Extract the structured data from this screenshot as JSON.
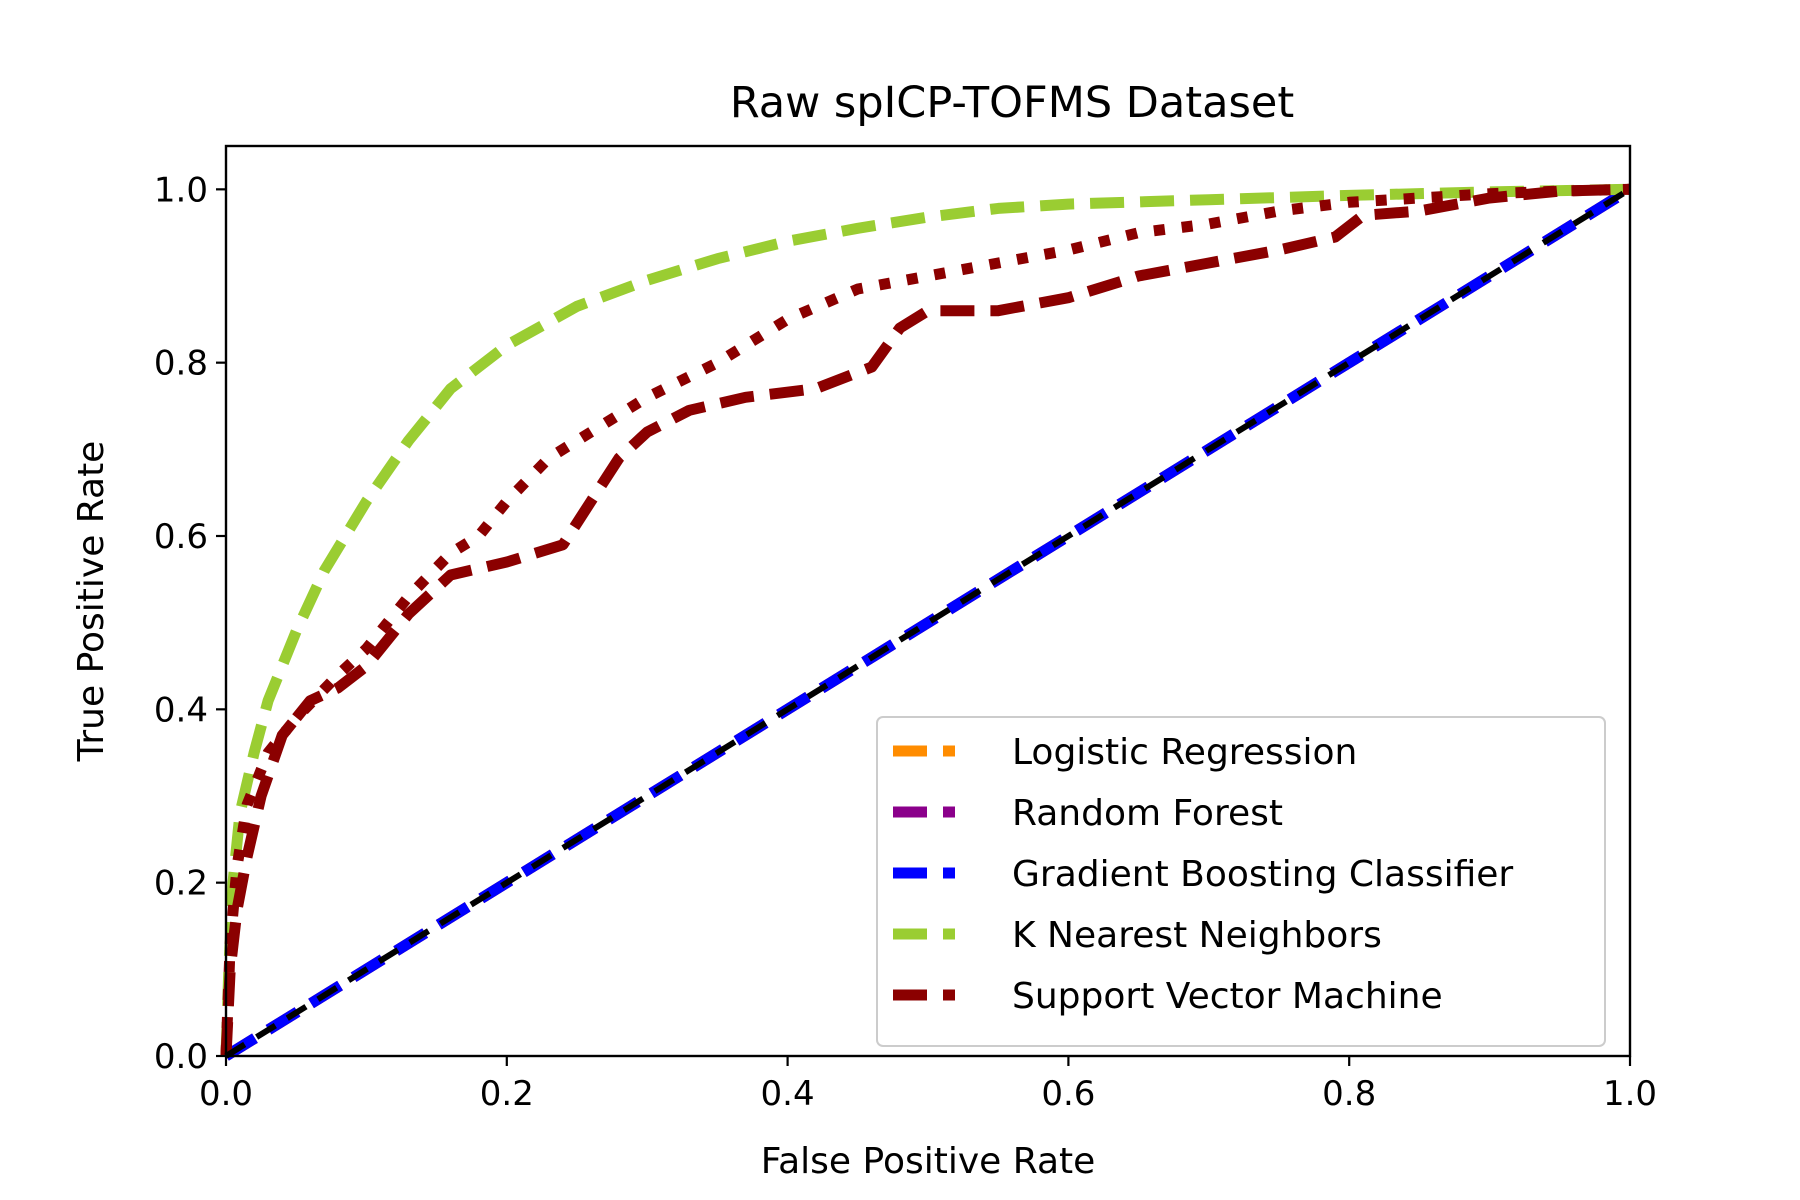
{
  "chart_data": {
    "type": "line",
    "title": "Raw spICP-TOFMS Dataset",
    "xlabel": "False Positive Rate",
    "ylabel": "True Positive Rate",
    "xlim": [
      0.0,
      1.0
    ],
    "ylim": [
      0.0,
      1.05
    ],
    "xticks": [
      "0.0",
      "0.2",
      "0.4",
      "0.6",
      "0.8",
      "1.0"
    ],
    "yticks": [
      "0.0",
      "0.2",
      "0.4",
      "0.6",
      "0.8",
      "1.0"
    ],
    "grid": false,
    "legend_position": "lower-right",
    "series": [
      {
        "name": "Logistic Regression",
        "color": "#ff8c00",
        "style": "dashed",
        "x": [
          0.0,
          1.0
        ],
        "y": [
          0.0,
          1.0
        ]
      },
      {
        "name": "Random Forest",
        "color": "#8b008b",
        "style": "dashed",
        "x": [
          0.0,
          1.0
        ],
        "y": [
          0.0,
          1.0
        ]
      },
      {
        "name": "Gradient Boosting Classifier",
        "color": "#0000ff",
        "style": "dashed",
        "x": [
          0.0,
          1.0
        ],
        "y": [
          0.0,
          1.0
        ]
      },
      {
        "name": "K Nearest Neighbors",
        "color": "#9acd32",
        "style": "dashed",
        "x": [
          0.0,
          0.002,
          0.005,
          0.01,
          0.02,
          0.03,
          0.05,
          0.07,
          0.1,
          0.13,
          0.16,
          0.2,
          0.25,
          0.3,
          0.35,
          0.4,
          0.45,
          0.5,
          0.55,
          0.6,
          0.7,
          0.8,
          0.9,
          1.0
        ],
        "y": [
          0.0,
          0.1,
          0.2,
          0.28,
          0.35,
          0.41,
          0.49,
          0.56,
          0.64,
          0.71,
          0.77,
          0.82,
          0.865,
          0.895,
          0.92,
          0.94,
          0.955,
          0.968,
          0.978,
          0.983,
          0.988,
          0.993,
          0.997,
          1.0
        ]
      },
      {
        "name": "Support Vector Machine",
        "color": "#8b0000",
        "style": "dashed",
        "x": [
          0.0,
          0.003,
          0.008,
          0.015,
          0.025,
          0.04,
          0.06,
          0.08,
          0.1,
          0.13,
          0.16,
          0.2,
          0.24,
          0.26,
          0.28,
          0.3,
          0.33,
          0.37,
          0.42,
          0.46,
          0.48,
          0.5,
          0.55,
          0.6,
          0.65,
          0.7,
          0.75,
          0.79,
          0.81,
          0.85,
          0.9,
          0.95,
          1.0
        ],
        "y": [
          0.0,
          0.1,
          0.17,
          0.23,
          0.3,
          0.37,
          0.41,
          0.425,
          0.45,
          0.51,
          0.555,
          0.57,
          0.59,
          0.64,
          0.69,
          0.72,
          0.745,
          0.76,
          0.77,
          0.795,
          0.84,
          0.86,
          0.86,
          0.875,
          0.9,
          0.915,
          0.93,
          0.945,
          0.97,
          0.975,
          0.99,
          0.998,
          1.0
        ]
      },
      {
        "name": "",
        "color": "#8b0000",
        "style": "dotted",
        "x": [
          0.0,
          0.003,
          0.008,
          0.015,
          0.03,
          0.05,
          0.08,
          0.1,
          0.13,
          0.16,
          0.18,
          0.2,
          0.23,
          0.26,
          0.3,
          0.35,
          0.4,
          0.45,
          0.5,
          0.55,
          0.6,
          0.65,
          0.7,
          0.75,
          0.8,
          0.85,
          0.9,
          0.95,
          1.0
        ],
        "y": [
          0.0,
          0.13,
          0.22,
          0.29,
          0.35,
          0.39,
          0.44,
          0.47,
          0.53,
          0.58,
          0.6,
          0.64,
          0.69,
          0.72,
          0.76,
          0.8,
          0.85,
          0.885,
          0.9,
          0.915,
          0.93,
          0.95,
          0.96,
          0.975,
          0.985,
          0.99,
          0.995,
          0.998,
          1.0
        ]
      },
      {
        "name": "",
        "color": "#000000",
        "style": "dashed",
        "x": [
          0.0,
          1.0
        ],
        "y": [
          0.0,
          1.0
        ]
      }
    ]
  }
}
